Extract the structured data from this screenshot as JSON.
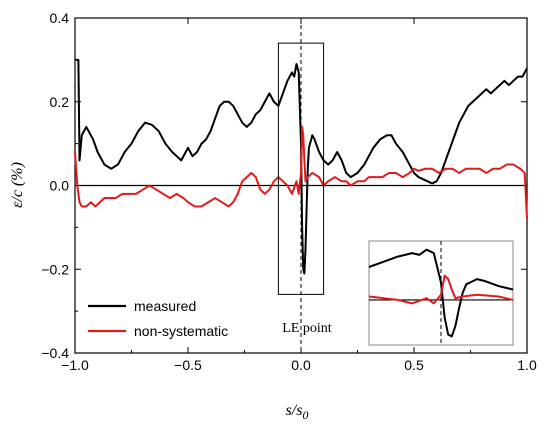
{
  "chart_data": {
    "type": "line",
    "title": "",
    "xlabel": "s/s",
    "xlabel_sub": "0",
    "ylabel": "ε/c (%)",
    "xlim": [
      -1.0,
      1.0
    ],
    "ylim": [
      -0.4,
      0.4
    ],
    "xticks": [
      -1.0,
      -0.5,
      0.0,
      0.5,
      1.0
    ],
    "xtick_labels": [
      "−1.0",
      "−0.5",
      "0.0",
      "0.5",
      "1.0"
    ],
    "yticks": [
      -0.4,
      -0.2,
      0.0,
      0.2,
      0.4
    ],
    "ytick_labels": [
      "−0.4",
      "−0.2",
      "0.0",
      "0.2",
      "0.4"
    ],
    "grid": false,
    "legend_position": "bottom-left",
    "annotation": "LE point",
    "inset": true,
    "colors": {
      "measured": "#000000",
      "non_systematic": "#e31a1c",
      "inset_frame": "#888888"
    },
    "series": [
      {
        "name": "measured",
        "x": [
          -1.0,
          -0.985,
          -0.98,
          -0.97,
          -0.95,
          -0.92,
          -0.9,
          -0.87,
          -0.84,
          -0.81,
          -0.78,
          -0.75,
          -0.72,
          -0.69,
          -0.66,
          -0.63,
          -0.6,
          -0.57,
          -0.55,
          -0.53,
          -0.5,
          -0.48,
          -0.46,
          -0.44,
          -0.42,
          -0.4,
          -0.38,
          -0.36,
          -0.34,
          -0.32,
          -0.3,
          -0.28,
          -0.26,
          -0.24,
          -0.22,
          -0.2,
          -0.18,
          -0.16,
          -0.14,
          -0.12,
          -0.1,
          -0.08,
          -0.06,
          -0.04,
          -0.03,
          -0.02,
          -0.01,
          0.0,
          0.005,
          0.01,
          0.015,
          0.02,
          0.025,
          0.03,
          0.035,
          0.04,
          0.05,
          0.06,
          0.08,
          0.1,
          0.12,
          0.14,
          0.16,
          0.18,
          0.2,
          0.22,
          0.25,
          0.28,
          0.3,
          0.32,
          0.35,
          0.38,
          0.4,
          0.42,
          0.45,
          0.48,
          0.5,
          0.52,
          0.54,
          0.56,
          0.58,
          0.6,
          0.62,
          0.64,
          0.66,
          0.68,
          0.7,
          0.72,
          0.74,
          0.76,
          0.78,
          0.8,
          0.82,
          0.84,
          0.86,
          0.88,
          0.9,
          0.92,
          0.94,
          0.96,
          0.98,
          0.99,
          1.0
        ],
        "y": [
          0.3,
          0.3,
          0.06,
          0.12,
          0.14,
          0.11,
          0.08,
          0.05,
          0.04,
          0.05,
          0.08,
          0.1,
          0.13,
          0.15,
          0.145,
          0.13,
          0.1,
          0.08,
          0.07,
          0.06,
          0.09,
          0.07,
          0.08,
          0.1,
          0.11,
          0.13,
          0.16,
          0.19,
          0.2,
          0.2,
          0.19,
          0.17,
          0.15,
          0.14,
          0.15,
          0.17,
          0.18,
          0.2,
          0.22,
          0.2,
          0.19,
          0.22,
          0.25,
          0.27,
          0.26,
          0.29,
          0.27,
          0.1,
          -0.1,
          -0.2,
          -0.21,
          -0.15,
          -0.05,
          0.04,
          0.09,
          0.1,
          0.12,
          0.11,
          0.08,
          0.06,
          0.05,
          0.06,
          0.08,
          0.06,
          0.03,
          0.02,
          0.03,
          0.05,
          0.07,
          0.09,
          0.11,
          0.12,
          0.12,
          0.1,
          0.08,
          0.05,
          0.03,
          0.02,
          0.015,
          0.01,
          0.005,
          0.01,
          0.03,
          0.06,
          0.09,
          0.12,
          0.15,
          0.17,
          0.19,
          0.2,
          0.21,
          0.22,
          0.23,
          0.22,
          0.23,
          0.24,
          0.25,
          0.24,
          0.25,
          0.26,
          0.26,
          0.27,
          0.28
        ]
      },
      {
        "name": "non-systematic",
        "x": [
          -1.0,
          -0.99,
          -0.98,
          -0.97,
          -0.95,
          -0.93,
          -0.91,
          -0.89,
          -0.87,
          -0.85,
          -0.82,
          -0.79,
          -0.76,
          -0.73,
          -0.7,
          -0.67,
          -0.64,
          -0.61,
          -0.58,
          -0.55,
          -0.52,
          -0.5,
          -0.47,
          -0.44,
          -0.41,
          -0.38,
          -0.35,
          -0.32,
          -0.3,
          -0.28,
          -0.26,
          -0.24,
          -0.22,
          -0.2,
          -0.18,
          -0.16,
          -0.14,
          -0.12,
          -0.1,
          -0.08,
          -0.06,
          -0.04,
          -0.02,
          -0.01,
          0.0,
          0.005,
          0.01,
          0.015,
          0.02,
          0.03,
          0.05,
          0.08,
          0.1,
          0.12,
          0.15,
          0.18,
          0.2,
          0.22,
          0.25,
          0.28,
          0.3,
          0.33,
          0.36,
          0.39,
          0.42,
          0.45,
          0.48,
          0.5,
          0.52,
          0.55,
          0.58,
          0.61,
          0.64,
          0.67,
          0.7,
          0.73,
          0.76,
          0.79,
          0.82,
          0.85,
          0.88,
          0.91,
          0.94,
          0.97,
          0.99,
          1.0
        ],
        "y": [
          0.08,
          0.0,
          -0.04,
          -0.05,
          -0.05,
          -0.04,
          -0.05,
          -0.04,
          -0.03,
          -0.03,
          -0.03,
          -0.02,
          -0.02,
          -0.02,
          -0.01,
          0.0,
          -0.01,
          -0.02,
          -0.03,
          -0.02,
          -0.03,
          -0.04,
          -0.05,
          -0.05,
          -0.04,
          -0.03,
          -0.04,
          -0.05,
          -0.04,
          -0.02,
          0.01,
          0.02,
          0.03,
          0.02,
          -0.01,
          -0.02,
          -0.01,
          0.01,
          0.02,
          0.01,
          0.0,
          -0.02,
          0.01,
          -0.02,
          0.03,
          0.14,
          0.12,
          0.06,
          0.01,
          0.02,
          0.03,
          0.02,
          0.0,
          0.01,
          0.02,
          0.01,
          0.01,
          0.0,
          0.01,
          0.01,
          0.02,
          0.02,
          0.02,
          0.03,
          0.03,
          0.02,
          0.03,
          0.04,
          0.035,
          0.04,
          0.04,
          0.03,
          0.04,
          0.04,
          0.03,
          0.04,
          0.04,
          0.04,
          0.03,
          0.04,
          0.04,
          0.05,
          0.05,
          0.04,
          0.03,
          -0.08
        ]
      }
    ]
  }
}
